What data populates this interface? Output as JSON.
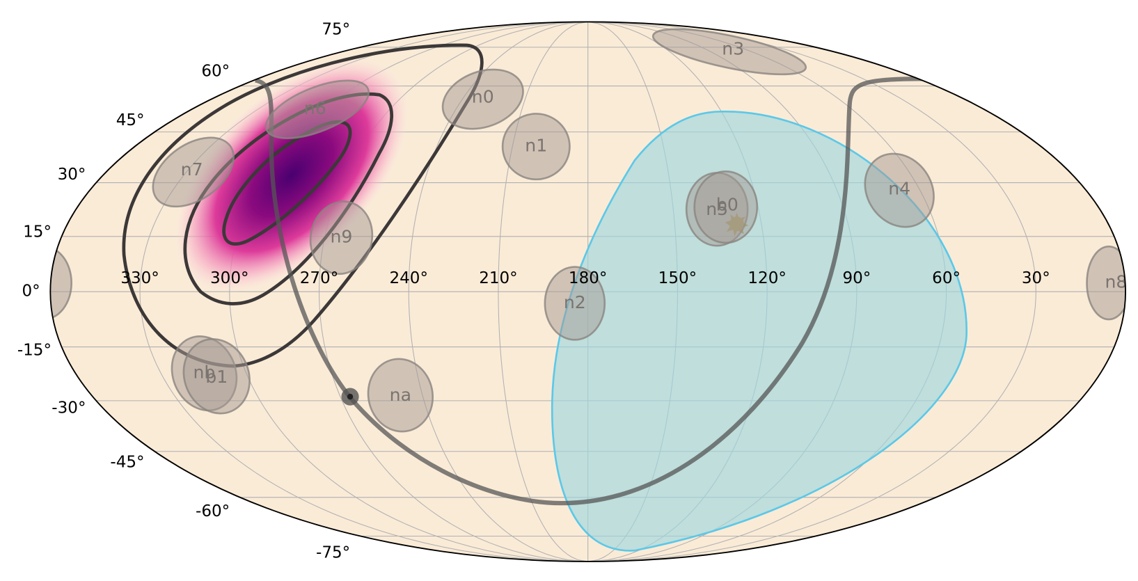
{
  "graticule": {
    "latitudes": [
      {
        "value": 75,
        "label": "75°"
      },
      {
        "value": 60,
        "label": "60°"
      },
      {
        "value": 45,
        "label": "45°"
      },
      {
        "value": 30,
        "label": "30°"
      },
      {
        "value": 15,
        "label": "15°"
      },
      {
        "value": 0,
        "label": "0°"
      },
      {
        "value": -15,
        "label": "-15°"
      },
      {
        "value": -30,
        "label": "-30°"
      },
      {
        "value": -45,
        "label": "-45°"
      },
      {
        "value": -60,
        "label": "-60°"
      },
      {
        "value": -75,
        "label": "-75°"
      }
    ],
    "longitudes": [
      {
        "value": 330,
        "label": "330°"
      },
      {
        "value": 300,
        "label": "300°"
      },
      {
        "value": 270,
        "label": "270°"
      },
      {
        "value": 240,
        "label": "240°"
      },
      {
        "value": 210,
        "label": "210°"
      },
      {
        "value": 180,
        "label": "180°"
      },
      {
        "value": 150,
        "label": "150°"
      },
      {
        "value": 120,
        "label": "120°"
      },
      {
        "value": 90,
        "label": "90°"
      },
      {
        "value": 60,
        "label": "60°"
      },
      {
        "value": 30,
        "label": "30°"
      }
    ]
  },
  "detectors": [
    "n0",
    "n1",
    "n2",
    "n3",
    "n4",
    "n5",
    "b0",
    "n6",
    "n7",
    "n8",
    "n9",
    "na",
    "nb",
    "b1"
  ]
}
